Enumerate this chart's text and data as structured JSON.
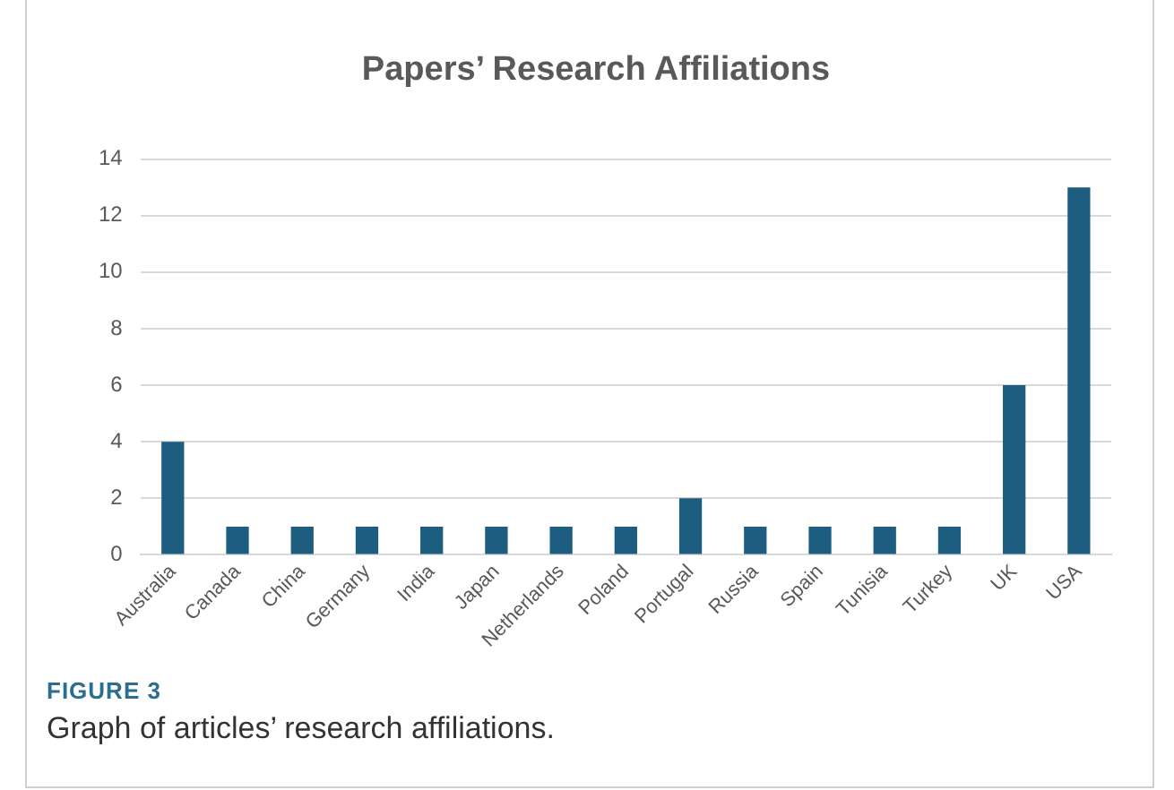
{
  "chart_data": {
    "type": "bar",
    "title": "Papers’ Research Affiliations",
    "categories": [
      "Australia",
      "Canada",
      "China",
      "Germany",
      "India",
      "Japan",
      "Netherlands",
      "Poland",
      "Portugal",
      "Russia",
      "Spain",
      "Tunisia",
      "Turkey",
      "UK",
      "USA"
    ],
    "values": [
      4,
      1,
      1,
      1,
      1,
      1,
      1,
      1,
      2,
      1,
      1,
      1,
      1,
      6,
      13
    ],
    "color": "#1d5d80",
    "ylim": [
      0,
      14
    ],
    "yticks": [
      0,
      2,
      4,
      6,
      8,
      10,
      12,
      14
    ],
    "grid": "y",
    "annotations": [
      "FIGURE 3",
      "Graph of articles’ research affiliations."
    ]
  }
}
